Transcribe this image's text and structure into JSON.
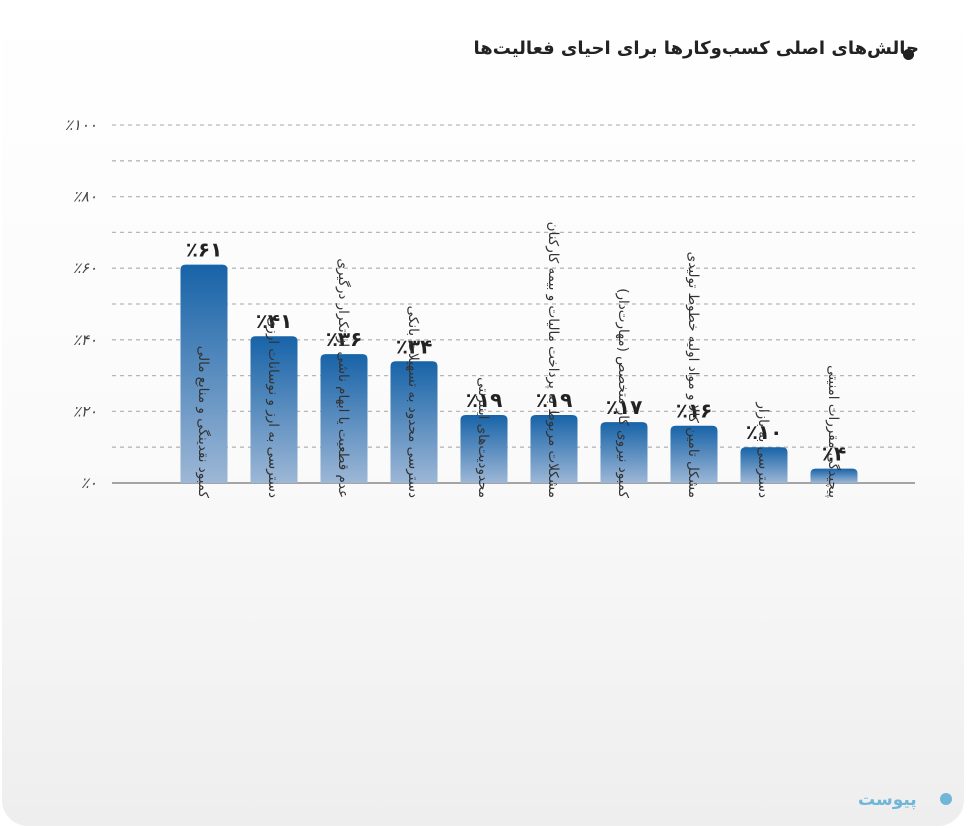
{
  "chart_data": {
    "type": "bar",
    "title": "چالش‌های اصلی کسب‌وکارها برای احیای فعالیت‌ها",
    "categories": [
      "کمبود نقدینگی و منابع مالی",
      "دسترسی به ارز و نوسانات ارزی",
      "عدم قطعیت یا ابهام ناشی از تکرار درگیری",
      "دسترسی محدود به تسهیلات بانکی",
      "محدودیت‌های اینترنتی",
      "مشکلات مربوط به پرداخت مالیات و بیمه کارکنان",
      "کمبود نیروی کار متخصص (مهارت‌دار)",
      "مشکل تامین کالا و مواد اولیه خطوط تولیدی",
      "دسترسی به بازار",
      "پیچیدگی مقررات امنیتی"
    ],
    "values": [
      61,
      41,
      36,
      34,
      19,
      19,
      17,
      16,
      10,
      4
    ],
    "value_labels": [
      "٪۶۱",
      "٪۴۱",
      "٪۳۶",
      "٪۳۴",
      "٪۱۹",
      "٪۱۹",
      "٪۱۷",
      "٪۱۶",
      "٪۱۰",
      "٪۴"
    ],
    "yticks": [
      0,
      20,
      40,
      60,
      80,
      100
    ],
    "ytick_labels": [
      "٪۰",
      "٪۲۰",
      "٪۴۰",
      "٪۶۰",
      "٪۸۰",
      "٪۱۰۰"
    ],
    "ylim": [
      0,
      100
    ],
    "grid": true,
    "bar_color_top": "#1763a8",
    "bar_color_bottom": "#9db7d6"
  },
  "watermark": "پیوست"
}
